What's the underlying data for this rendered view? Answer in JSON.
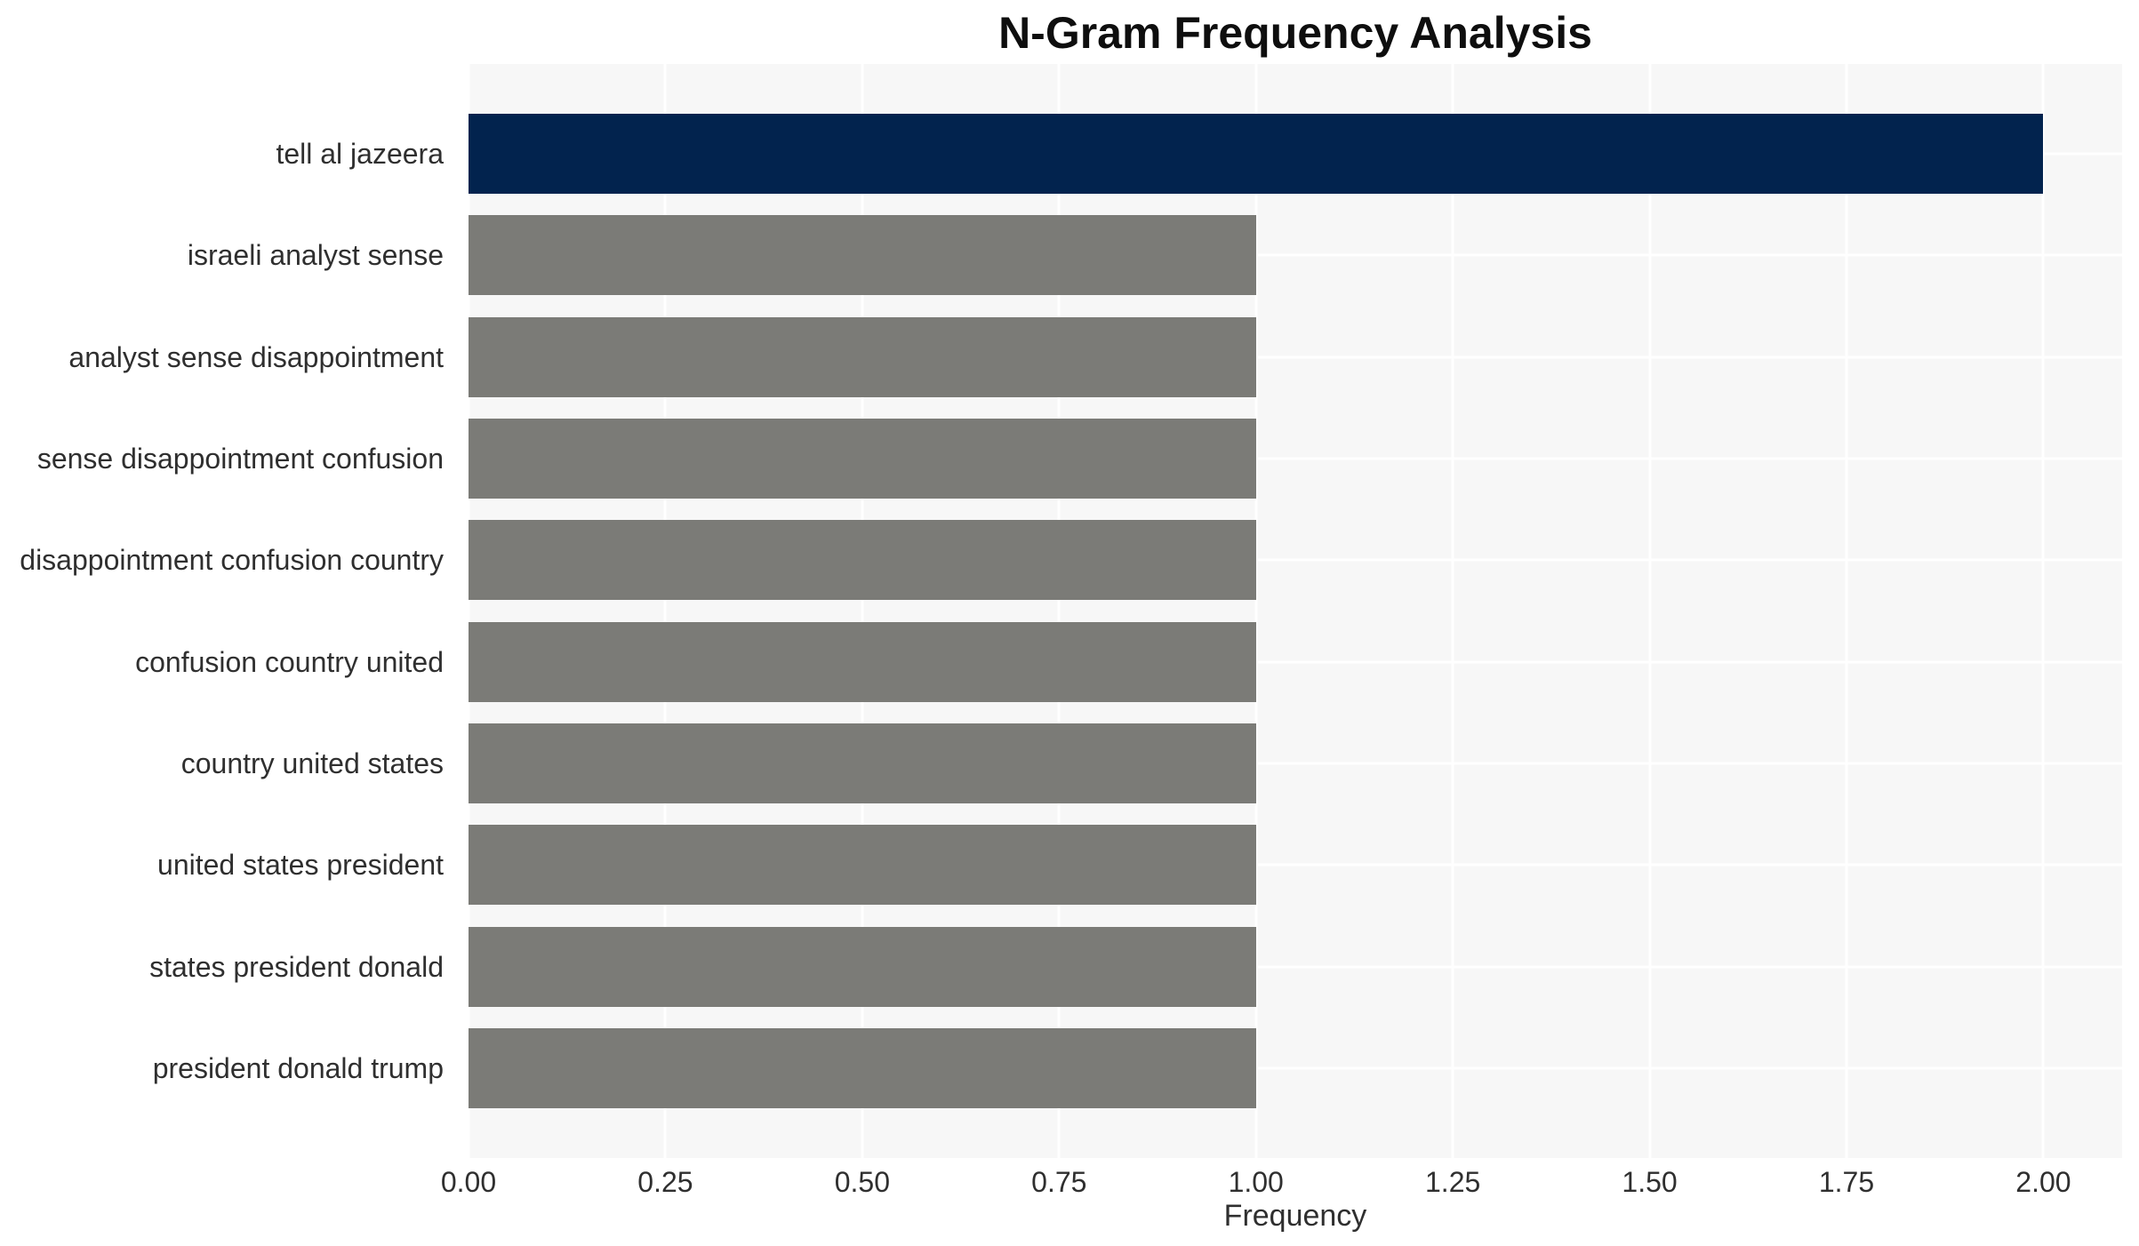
{
  "chart_data": {
    "type": "bar",
    "orientation": "horizontal",
    "title": "N-Gram Frequency Analysis",
    "xlabel": "Frequency",
    "ylabel": "",
    "categories": [
      "tell al jazeera",
      "israeli analyst sense",
      "analyst sense disappointment",
      "sense disappointment confusion",
      "disappointment confusion country",
      "confusion country united",
      "country united states",
      "united states president",
      "states president donald",
      "president donald trump"
    ],
    "values": [
      2,
      1,
      1,
      1,
      1,
      1,
      1,
      1,
      1,
      1
    ],
    "xlim": [
      0,
      2.1
    ],
    "xticks": [
      0,
      0.25,
      0.5,
      0.75,
      1.0,
      1.25,
      1.5,
      1.75,
      2.0
    ],
    "xtick_labels": [
      "0.00",
      "0.25",
      "0.50",
      "0.75",
      "1.00",
      "1.25",
      "1.50",
      "1.75",
      "2.00"
    ],
    "grid": true,
    "legend": false,
    "colors": {
      "highlight_bar": "#02234e",
      "default_bar": "#7b7b77",
      "plot_background": "#f7f7f7",
      "gridline": "#ffffff",
      "text": "#2f2f2f",
      "title_text": "#0e0e0e",
      "figure_background": "#ffffff"
    },
    "bar_colors": [
      "#02234e",
      "#7b7b77",
      "#7b7b77",
      "#7b7b77",
      "#7b7b77",
      "#7b7b77",
      "#7b7b77",
      "#7b7b77",
      "#7b7b77",
      "#7b7b77"
    ]
  }
}
